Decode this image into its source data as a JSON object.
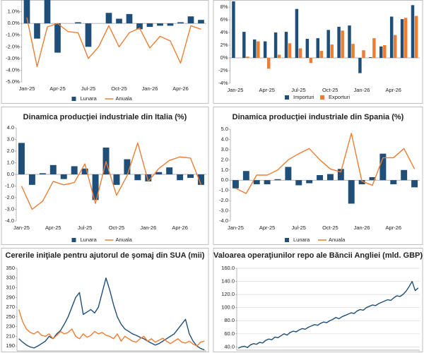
{
  "chart_data": [
    {
      "type": "combo",
      "categories": [
        "Jan-25",
        null,
        null,
        "Apr-25",
        null,
        null,
        "Jul-25",
        null,
        null,
        "Oct-25",
        null,
        null,
        "Jan-26",
        null,
        null,
        "Apr-26",
        null,
        null
      ],
      "series": [
        {
          "name": "Lunara",
          "type": "bar",
          "color": "#1f4e79",
          "values": [
            2.0,
            -1.3,
            2.0,
            -2.5,
            0.0,
            0.1,
            -2.0,
            0.0,
            0.9,
            0.4,
            0.8,
            -0.5,
            -0.3,
            -0.2,
            -0.2,
            0.1,
            0.6,
            0.3
          ]
        },
        {
          "name": "Anuala",
          "type": "line",
          "color": "#ed7d31",
          "values": [
            0.5,
            -3.7,
            -0.3,
            0.0,
            -0.7,
            -0.8,
            -3.0,
            -2.0,
            -0.2,
            -2.0,
            -0.8,
            -0.4,
            -2.1,
            -1.1,
            -1.5,
            -3.4,
            -0.2,
            -0.5
          ]
        }
      ],
      "ylim": [
        -5,
        2
      ],
      "yticks": [
        {
          "value": 1,
          "label": "1.0%"
        },
        {
          "value": 0,
          "label": "0.0%"
        },
        {
          "value": -1,
          "label": "-1.0%"
        },
        {
          "value": -2,
          "label": "-2.0%"
        },
        {
          "value": -3,
          "label": "-3.0%"
        },
        {
          "value": -4,
          "label": "-4.0%"
        },
        {
          "value": -5,
          "label": "-5.0%"
        }
      ],
      "grid": false,
      "legend": "bottom"
    },
    {
      "type": "bar",
      "categories": [
        "Jan-25",
        null,
        null,
        "Apr-25",
        null,
        null,
        "Jul-25",
        null,
        null,
        "Oct-25",
        null,
        null,
        "Jan-26",
        null,
        null,
        "Apr-26",
        null,
        null
      ],
      "series": [
        {
          "name": "Importuri",
          "color": "#1f4e79",
          "values": [
            8.9,
            4.1,
            2.9,
            2.6,
            4.0,
            4.1,
            7.7,
            3.0,
            3.1,
            4.4,
            4.9,
            5.1,
            -2.4,
            0.1,
            1.8,
            6.5,
            6.1,
            8.3
          ]
        },
        {
          "name": "Exporturi",
          "color": "#ed7d31",
          "values": [
            0.0,
            0.2,
            2.6,
            -1.7,
            0.5,
            2.3,
            1.5,
            -0.8,
            1.1,
            2.1,
            4.3,
            2.2,
            1.2,
            3.1,
            2.0,
            3.6,
            6.3,
            6.6
          ]
        }
      ],
      "ylim": [
        -4,
        9
      ],
      "yticks": [
        {
          "value": 8,
          "label": "8%"
        },
        {
          "value": 6,
          "label": "6%"
        },
        {
          "value": 4,
          "label": "4%"
        },
        {
          "value": 2,
          "label": "2%"
        },
        {
          "value": 0,
          "label": "0%"
        },
        {
          "value": -2,
          "label": "-2%"
        },
        {
          "value": -4,
          "label": "-4%"
        }
      ],
      "grid": false,
      "legend": "bottom"
    },
    {
      "type": "combo",
      "title": "Dinamica producţiei industriale din Italia (%)",
      "categories": [
        "Jan-25",
        null,
        null,
        "Apr-25",
        null,
        null,
        "Jul-25",
        null,
        null,
        "Oct-25",
        null,
        null,
        "Jan-26",
        null,
        null,
        "Apr-26",
        null,
        null
      ],
      "series": [
        {
          "name": "Lunara",
          "type": "bar",
          "color": "#1f4e79",
          "values": [
            2.7,
            -0.9,
            0.1,
            0.8,
            -0.4,
            0.7,
            0.5,
            -2.2,
            2.3,
            -0.9,
            1.3,
            -0.5,
            -0.6,
            0.2,
            0.6,
            -0.5,
            -0.3,
            -0.9
          ]
        },
        {
          "name": "Anuala",
          "type": "line",
          "color": "#ed7d31",
          "values": [
            -1.0,
            -3.0,
            -2.3,
            -0.6,
            -0.9,
            -0.7,
            0.9,
            -2.5,
            1.1,
            -1.8,
            -0.1,
            2.7,
            -0.6,
            0.5,
            1.2,
            1.5,
            1.4,
            -0.9
          ]
        }
      ],
      "ylim": [
        -4,
        4
      ],
      "yticks": [
        {
          "value": 4,
          "label": "4.0"
        },
        {
          "value": 3,
          "label": "3.0"
        },
        {
          "value": 2,
          "label": "2.0"
        },
        {
          "value": 1,
          "label": "1.0"
        },
        {
          "value": 0,
          "label": "0.0"
        },
        {
          "value": -1,
          "label": "-1.0"
        },
        {
          "value": -2,
          "label": "-2.0"
        },
        {
          "value": -3,
          "label": "-3.0"
        },
        {
          "value": -4,
          "label": "-4.0"
        }
      ],
      "grid": false,
      "legend": "bottom"
    },
    {
      "type": "combo",
      "title": "Dinamica producţiei industriale din Spania (%)",
      "categories": [
        "Jan-25",
        null,
        null,
        "Apr-25",
        null,
        null,
        "Jul-25",
        null,
        null,
        "Oct-25",
        null,
        null,
        "Jan-26",
        null,
        null,
        "Apr-26",
        null,
        null
      ],
      "series": [
        {
          "name": "Lunara",
          "type": "bar",
          "color": "#1f4e79",
          "values": [
            -0.8,
            0.9,
            -0.4,
            -0.4,
            0.1,
            1.3,
            -0.5,
            -0.3,
            0.5,
            0.6,
            1.1,
            -2.3,
            -0.4,
            0.3,
            2.6,
            -0.4,
            1.0,
            -0.7
          ]
        },
        {
          "name": "Anuala",
          "type": "line",
          "color": "#ed7d31",
          "values": [
            -0.8,
            -1.3,
            0.5,
            0.5,
            1.0,
            2.0,
            2.6,
            3.1,
            2.0,
            1.1,
            0.8,
            4.6,
            -0.1,
            -0.5,
            2.2,
            2.2,
            3.1,
            1.1
          ]
        }
      ],
      "ylim": [
        -4,
        5
      ],
      "yticks": [
        {
          "value": 5,
          "label": "5.0"
        },
        {
          "value": 4,
          "label": "4.0"
        },
        {
          "value": 3,
          "label": "3.0"
        },
        {
          "value": 2,
          "label": "2.0"
        },
        {
          "value": 1,
          "label": "1.0"
        },
        {
          "value": 0,
          "label": "0.0"
        },
        {
          "value": -1,
          "label": "-1.0"
        },
        {
          "value": -2,
          "label": "-2.0"
        },
        {
          "value": -3,
          "label": "-3.0"
        },
        {
          "value": -4,
          "label": "-4.0"
        }
      ],
      "grid": false,
      "legend": "bottom"
    },
    {
      "type": "line",
      "title": "Cererile iniţiale pentru ajutorul de şomaj din SUA (mii)",
      "categories": [
        null,
        null,
        null,
        null,
        null,
        null,
        null,
        null,
        null,
        null,
        null,
        null,
        null,
        null,
        null,
        null,
        null,
        null,
        null,
        null,
        null,
        null,
        null,
        null,
        null,
        null,
        null,
        null,
        null,
        null,
        null,
        null,
        null,
        null,
        null,
        null,
        null,
        null,
        null,
        null,
        null,
        null,
        null,
        null,
        null,
        null,
        null,
        null,
        null,
        null
      ],
      "series": [
        {
          "color": "#1f4e79",
          "values": [
            205,
            198,
            192,
            188,
            186,
            190,
            195,
            200,
            210,
            205,
            215,
            222,
            235,
            250,
            270,
            290,
            300,
            255,
            260,
            265,
            258,
            270,
            300,
            330,
            305,
            275,
            250,
            235,
            225,
            220,
            215,
            212,
            208,
            205,
            200,
            196,
            192,
            195,
            200,
            205,
            210,
            215,
            225,
            235,
            245,
            215,
            200,
            190,
            185,
            182
          ]
        },
        {
          "color": "#ed7d31",
          "values": [
            265,
            240,
            225,
            218,
            215,
            220,
            212,
            210,
            215,
            205,
            212,
            220,
            215,
            218,
            225,
            210,
            205,
            215,
            208,
            212,
            220,
            215,
            218,
            212,
            210,
            205,
            215,
            200,
            210,
            205,
            200,
            198,
            205,
            210,
            200,
            205,
            198,
            202,
            206,
            200,
            195,
            200,
            205,
            198,
            196,
            200,
            194,
            190,
            198,
            200
          ]
        }
      ],
      "ylim": [
        180,
        350
      ],
      "yticks": [
        350,
        330,
        310,
        290,
        270,
        250,
        230,
        210,
        190
      ],
      "grid": false
    },
    {
      "type": "line",
      "title": "Valoarea operaţiunilor repo ale Băncii Angliei (mld. GBP)",
      "categories": [
        null,
        null,
        null,
        null,
        null,
        null,
        null,
        null,
        null,
        null,
        null,
        null,
        null,
        null,
        null,
        null,
        null,
        null,
        null,
        null,
        null,
        null,
        null,
        null,
        null,
        null,
        null,
        null,
        null,
        null,
        null,
        null,
        null,
        null,
        null,
        null,
        null,
        null,
        null,
        null,
        null,
        null,
        null,
        null,
        null,
        null,
        null,
        null,
        null,
        null,
        null,
        null,
        null,
        null,
        null,
        null,
        null,
        null,
        null,
        null
      ],
      "series": [
        {
          "color": "#1f4e79",
          "values": [
            38,
            40,
            41,
            39,
            43,
            45,
            44,
            47,
            46,
            50,
            52,
            51,
            55,
            54,
            57,
            60,
            58,
            62,
            64,
            63,
            66,
            68,
            67,
            70,
            72,
            74,
            73,
            76,
            78,
            77,
            80,
            82,
            85,
            83,
            86,
            88,
            90,
            92,
            91,
            95,
            97,
            96,
            100,
            102,
            104,
            103,
            106,
            108,
            110,
            112,
            111,
            115,
            118,
            117,
            120,
            125,
            132,
            140,
            126,
            130
          ]
        }
      ],
      "ylim": [
        35,
        160
      ],
      "yticks": [
        {
          "value": 160,
          "label": "160.0"
        },
        {
          "value": 140,
          "label": "140.0"
        },
        {
          "value": 120,
          "label": "120.0"
        },
        {
          "value": 100,
          "label": "100.0"
        },
        {
          "value": 80,
          "label": "80.0"
        },
        {
          "value": 60,
          "label": "60.0"
        },
        {
          "value": 40,
          "label": "40.0"
        }
      ],
      "grid": true
    }
  ]
}
